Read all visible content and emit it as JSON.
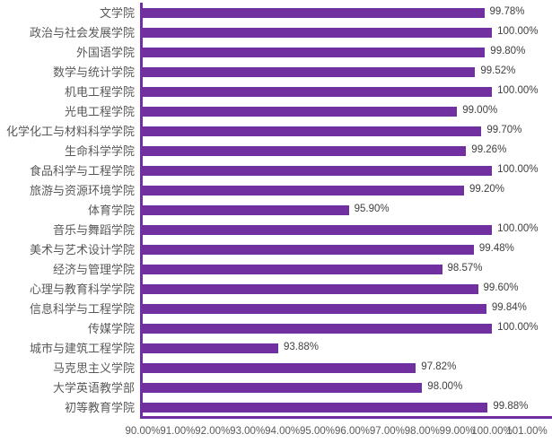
{
  "chart_data": {
    "type": "bar",
    "orientation": "horizontal",
    "title": "",
    "xlabel": "",
    "ylabel": "",
    "grid": false,
    "legend": "none",
    "bar_color": "#7030A0",
    "axis_color": "#7030A0",
    "tick_text_color": "#595959",
    "label_text_color": "#404040",
    "categories": [
      "文学院",
      "政治与社会发展学院",
      "外国语学院",
      "数学与统计学院",
      "机电工程学院",
      "光电工程学院",
      "化学化工与材料科学学院",
      "生命科学学院",
      "食品科学与工程学院",
      "旅游与资源环境学院",
      "体育学院",
      "音乐与舞蹈学院",
      "美术与艺术设计学院",
      "经济与管理学院",
      "心理与教育科学学院",
      "信息科学与工程学院",
      "传媒学院",
      "城市与建筑工程学院",
      "马克思主义学院",
      "大学英语教学部",
      "初等教育学院"
    ],
    "values": [
      99.78,
      100.0,
      99.8,
      99.52,
      100.0,
      99.0,
      99.7,
      99.26,
      100.0,
      99.2,
      95.9,
      100.0,
      99.48,
      98.57,
      99.6,
      99.84,
      100.0,
      93.88,
      97.82,
      98.0,
      99.88
    ],
    "value_labels": [
      "99.78%",
      "100.00%",
      "99.80%",
      "99.52%",
      "100.00%",
      "99.00%",
      "99.70%",
      "99.26%",
      "100.00%",
      "99.20%",
      "95.90%",
      "100.00%",
      "99.48%",
      "98.57%",
      "99.60%",
      "99.84%",
      "100.00%",
      "93.88%",
      "97.82%",
      "98.00%",
      "99.88%"
    ],
    "x_axis": {
      "min": 90,
      "max": 101,
      "tick_step": 1,
      "tick_labels": [
        "90.00%",
        "91.00%",
        "92.00%",
        "93.00%",
        "94.00%",
        "95.00%",
        "96.00%",
        "97.00%",
        "98.00%",
        "99.00%",
        "100.00%",
        "101.00%"
      ]
    }
  }
}
